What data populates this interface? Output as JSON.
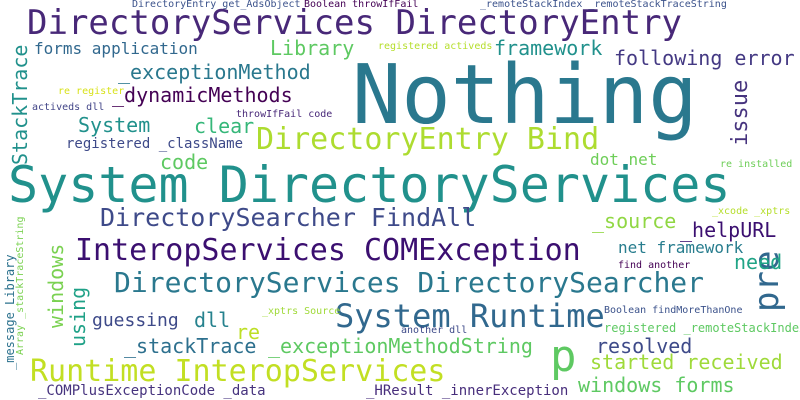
{
  "words": [
    {
      "text": "Nothing",
      "color": "#2a788e"
    },
    {
      "text": "System DirectoryServices",
      "color": "#21918c"
    },
    {
      "text": "DirectoryServices DirectoryEntry",
      "color": "#482878"
    },
    {
      "text": "InteropServices COMException",
      "color": "#3b0f70"
    },
    {
      "text": "DirectoryServices DirectorySearcher",
      "color": "#2a788e"
    },
    {
      "text": "DirectoryEntry Bind",
      "color": "#addc30"
    },
    {
      "text": "DirectorySearcher FindAll",
      "color": "#3e4a89"
    },
    {
      "text": "System Runtime",
      "color": "#31688e"
    },
    {
      "text": "Runtime InteropServices",
      "color": "#c2df23"
    },
    {
      "text": "p",
      "color": "#5ec962"
    },
    {
      "text": "pre",
      "color": "#31688e"
    },
    {
      "text": "_dynamicMethods",
      "color": "#440154"
    },
    {
      "text": "_exceptionMethod",
      "color": "#2a788e"
    },
    {
      "text": "framework",
      "color": "#21918c"
    },
    {
      "text": "following error",
      "color": "#443983"
    },
    {
      "text": "Library",
      "color": "#5ec962"
    },
    {
      "text": "forms application",
      "color": "#31688e"
    },
    {
      "text": "System",
      "color": "#21918c"
    },
    {
      "text": "clear",
      "color": "#35b779"
    },
    {
      "text": "registered _className",
      "color": "#3e4a89"
    },
    {
      "text": "code",
      "color": "#5ec962"
    },
    {
      "text": "issue",
      "color": "#46337e"
    },
    {
      "text": "StackTrace",
      "color": "#21918c"
    },
    {
      "text": "dot net",
      "color": "#6ece58"
    },
    {
      "text": "_source",
      "color": "#90d743"
    },
    {
      "text": "_helpURL",
      "color": "#3b0f70"
    },
    {
      "text": "net framework",
      "color": "#287d8e"
    },
    {
      "text": "need",
      "color": "#20a486"
    },
    {
      "text": "windows",
      "color": "#7ad151"
    },
    {
      "text": "using",
      "color": "#1fa187"
    },
    {
      "text": "guessing",
      "color": "#3e4a89"
    },
    {
      "text": "dll",
      "color": "#26828e"
    },
    {
      "text": "re",
      "color": "#bddf26"
    },
    {
      "text": "_stackTrace",
      "color": "#2d708e"
    },
    {
      "text": "_exceptionMethodString",
      "color": "#5ec962"
    },
    {
      "text": "resolved",
      "color": "#3e4a89"
    },
    {
      "text": "started received",
      "color": "#9fda3a"
    },
    {
      "text": "windows forms",
      "color": "#5ec962"
    },
    {
      "text": "_COMPlusExceptionCode _data",
      "color": "#46337e"
    },
    {
      "text": "_HResult _innerException",
      "color": "#472d7b"
    },
    {
      "text": "DirectoryEntry get_AdsObject",
      "color": "#3b528b"
    },
    {
      "text": "Boolean throwIfFail",
      "color": "#440154"
    },
    {
      "text": "_remoteStackIndex _remoteStackTraceString",
      "color": "#3b528b"
    },
    {
      "text": "registered activeds",
      "color": "#b5de2b"
    },
    {
      "text": "re register",
      "color": "#d8e219"
    },
    {
      "text": "activeds dll",
      "color": "#414487"
    },
    {
      "text": "throwIfFail code",
      "color": "#482878"
    },
    {
      "text": "re installed",
      "color": "#6ece58"
    },
    {
      "text": "_xcode _xptrs",
      "color": "#b5de2b"
    },
    {
      "text": "find another",
      "color": "#440154"
    },
    {
      "text": "Boolean findMoreThanOne",
      "color": "#3b528b"
    },
    {
      "text": "registered _remoteStackIndex",
      "color": "#5ec962"
    },
    {
      "text": "_xptrs Source",
      "color": "#a0da39"
    },
    {
      "text": "another dll",
      "color": "#3e4a89"
    },
    {
      "text": "_message Library",
      "color": "#2c728e"
    },
    {
      "text": "Array _stackTraceString",
      "color": "#7ad151"
    }
  ]
}
